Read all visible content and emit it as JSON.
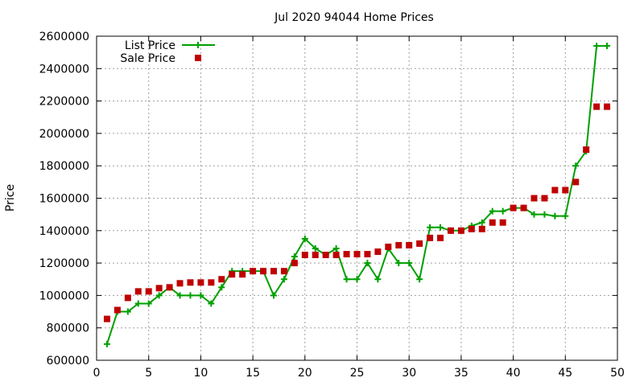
{
  "chart_data": {
    "type": "line",
    "title": "Jul 2020 94044 Home Prices",
    "xlabel": "",
    "ylabel": "Price",
    "xlim": [
      0,
      50
    ],
    "ylim": [
      600000,
      2600000
    ],
    "xticks": [
      0,
      5,
      10,
      15,
      20,
      25,
      30,
      35,
      40,
      45,
      50
    ],
    "yticks": [
      600000,
      800000,
      1000000,
      1200000,
      1400000,
      1600000,
      1800000,
      2000000,
      2200000,
      2400000,
      2600000
    ],
    "grid": true,
    "legend_position": "top-left",
    "series": [
      {
        "name": "List Price",
        "style": "line-with-plus-markers",
        "color": "#00a000",
        "x": [
          1,
          2,
          3,
          4,
          5,
          6,
          7,
          8,
          9,
          10,
          11,
          12,
          13,
          14,
          15,
          16,
          17,
          18,
          19,
          20,
          21,
          22,
          23,
          24,
          25,
          26,
          27,
          28,
          29,
          30,
          31,
          32,
          33,
          34,
          35,
          36,
          37,
          38,
          39,
          40,
          41,
          42,
          43,
          44,
          45,
          46,
          47,
          48,
          49
        ],
        "values": [
          700000,
          900000,
          900000,
          950000,
          950000,
          1000000,
          1050000,
          1000000,
          1000000,
          1000000,
          950000,
          1050000,
          1150000,
          1150000,
          1150000,
          1150000,
          1000000,
          1100000,
          1240000,
          1350000,
          1290000,
          1250000,
          1290000,
          1100000,
          1100000,
          1200000,
          1100000,
          1290000,
          1200000,
          1200000,
          1100000,
          1420000,
          1420000,
          1400000,
          1400000,
          1430000,
          1450000,
          1520000,
          1520000,
          1540000,
          1540000,
          1500000,
          1500000,
          1490000,
          1490000,
          1800000,
          1890000,
          2540000,
          2540000
        ]
      },
      {
        "name": "Sale Price",
        "style": "square-markers",
        "color": "#c00000",
        "x": [
          1,
          2,
          3,
          4,
          5,
          6,
          7,
          8,
          9,
          10,
          11,
          12,
          13,
          14,
          15,
          16,
          17,
          18,
          19,
          20,
          21,
          22,
          23,
          24,
          25,
          26,
          27,
          28,
          29,
          30,
          31,
          32,
          33,
          34,
          35,
          36,
          37,
          38,
          39,
          40,
          41,
          42,
          43,
          44,
          45,
          46,
          47,
          48,
          49
        ],
        "values": [
          855000,
          910000,
          985000,
          1025000,
          1025000,
          1045000,
          1050000,
          1075000,
          1080000,
          1080000,
          1080000,
          1100000,
          1130000,
          1130000,
          1150000,
          1150000,
          1150000,
          1150000,
          1200000,
          1250000,
          1250000,
          1250000,
          1250000,
          1255000,
          1255000,
          1255000,
          1270000,
          1300000,
          1310000,
          1310000,
          1320000,
          1355000,
          1355000,
          1400000,
          1400000,
          1410000,
          1410000,
          1450000,
          1450000,
          1540000,
          1540000,
          1600000,
          1600000,
          1650000,
          1650000,
          1700000,
          1900000,
          2165000,
          2165000
        ]
      }
    ]
  }
}
